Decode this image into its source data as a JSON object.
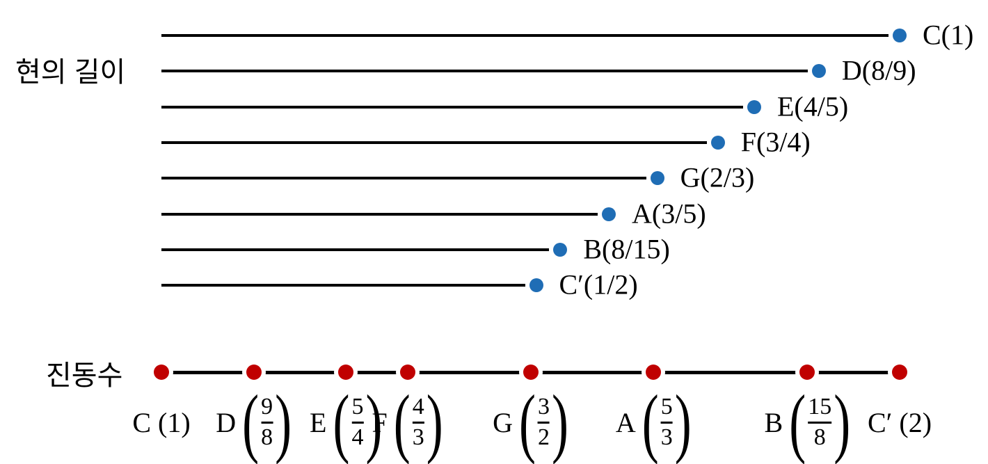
{
  "string_length_section": {
    "label": "현의 길이",
    "dot_color": "#1f6db5",
    "line_color": "#000000",
    "rows": [
      {
        "note": "C",
        "label": "C(1)",
        "ratio_num": 1,
        "ratio_den": 1
      },
      {
        "note": "D",
        "label": "D(8/9)",
        "ratio_num": 8,
        "ratio_den": 9
      },
      {
        "note": "E",
        "label": "E(4/5)",
        "ratio_num": 4,
        "ratio_den": 5
      },
      {
        "note": "F",
        "label": "F(3/4)",
        "ratio_num": 3,
        "ratio_den": 4
      },
      {
        "note": "G",
        "label": "G(2/3)",
        "ratio_num": 2,
        "ratio_den": 3
      },
      {
        "note": "A",
        "label": "A(3/5)",
        "ratio_num": 3,
        "ratio_den": 5
      },
      {
        "note": "B",
        "label": "B(8/15)",
        "ratio_num": 8,
        "ratio_den": 15
      },
      {
        "note": "C′",
        "label": "C′(1/2)",
        "ratio_num": 1,
        "ratio_den": 2
      }
    ]
  },
  "frequency_section": {
    "label": "진동수",
    "dot_color": "#c00000",
    "line_color": "#000000",
    "points": [
      {
        "letter": "C",
        "value": "1",
        "num": null,
        "den": null,
        "ratio_num": 1,
        "ratio_den": 1
      },
      {
        "letter": "D",
        "value": null,
        "num": "9",
        "den": "8",
        "ratio_num": 9,
        "ratio_den": 8
      },
      {
        "letter": "E",
        "value": null,
        "num": "5",
        "den": "4",
        "ratio_num": 5,
        "ratio_den": 4
      },
      {
        "letter": "F",
        "value": null,
        "num": "4",
        "den": "3",
        "ratio_num": 4,
        "ratio_den": 3
      },
      {
        "letter": "G",
        "value": null,
        "num": "3",
        "den": "2",
        "ratio_num": 3,
        "ratio_den": 2
      },
      {
        "letter": "A",
        "value": null,
        "num": "5",
        "den": "3",
        "ratio_num": 5,
        "ratio_den": 3
      },
      {
        "letter": "B",
        "value": null,
        "num": "15",
        "den": "8",
        "ratio_num": 15,
        "ratio_den": 8
      },
      {
        "letter": "C′",
        "value": "2",
        "num": null,
        "den": null,
        "ratio_num": 2,
        "ratio_den": 1
      }
    ]
  }
}
